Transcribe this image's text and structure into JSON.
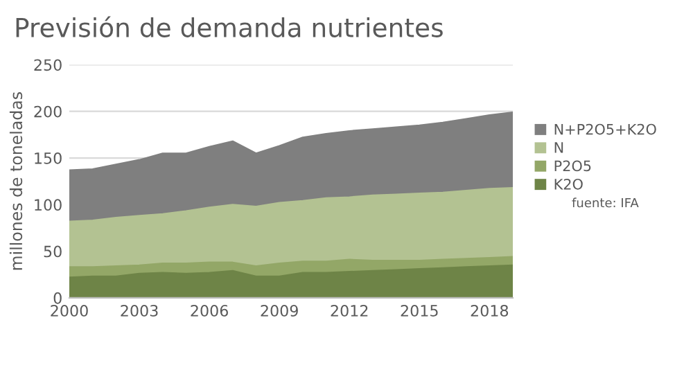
{
  "chart_data": {
    "type": "area",
    "title": "Previsión de demanda nutrientes",
    "ylabel": "millones de toneladas",
    "x": [
      2000,
      2001,
      2002,
      2003,
      2004,
      2005,
      2006,
      2007,
      2008,
      2009,
      2010,
      2011,
      2012,
      2013,
      2014,
      2015,
      2016,
      2017,
      2018,
      2019
    ],
    "series": [
      {
        "name": "N+P2O5+K2O",
        "color": "#7f7f7f",
        "values": [
          137,
          138,
          143,
          148,
          155,
          155,
          162,
          168,
          155,
          163,
          172,
          176,
          179,
          181,
          183,
          185,
          188,
          192,
          196,
          199
        ]
      },
      {
        "name": "N",
        "color": "#b3c292",
        "values": [
          82,
          83,
          86,
          88,
          90,
          93,
          97,
          100,
          98,
          102,
          104,
          107,
          108,
          110,
          111,
          112,
          113,
          115,
          117,
          118
        ]
      },
      {
        "name": "P2O5",
        "color": "#93a767",
        "values": [
          33,
          33,
          34,
          35,
          37,
          37,
          38,
          38,
          34,
          37,
          39,
          39,
          41,
          40,
          40,
          40,
          41,
          42,
          43,
          44
        ]
      },
      {
        "name": "K2O",
        "color": "#6e8447",
        "values": [
          22,
          23,
          23,
          26,
          27,
          26,
          27,
          29,
          23,
          23,
          27,
          27,
          28,
          29,
          30,
          31,
          32,
          33,
          34,
          35
        ]
      }
    ],
    "xlim": [
      2000,
      2019
    ],
    "xticks": [
      2000,
      2003,
      2006,
      2009,
      2012,
      2015,
      2018
    ],
    "ylim": [
      0,
      250
    ],
    "yticks": [
      0,
      50,
      100,
      150,
      200,
      250
    ],
    "grid": "y",
    "legend": "right",
    "annotations": [
      "fuente: IFA"
    ]
  }
}
